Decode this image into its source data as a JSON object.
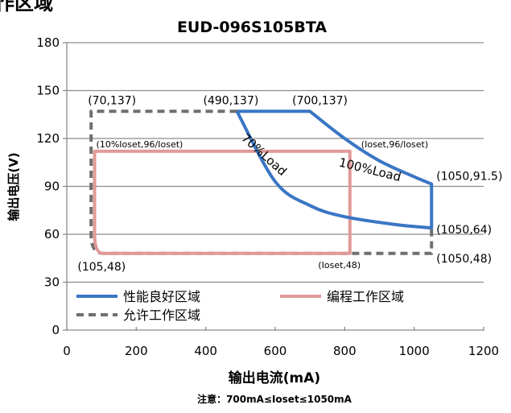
{
  "top_fragment": "作区域",
  "chart_data": {
    "type": "line",
    "title": "EUD-096S105BTA",
    "xlabel": "输出电流(mA)",
    "ylabel": "输出电压(V)",
    "footnote": "注意：700mA≤Ioset≤1050mA",
    "xlim": [
      0,
      1200
    ],
    "ylim": [
      0,
      180
    ],
    "x_ticks": [
      "0",
      "200",
      "400",
      "600",
      "800",
      "1000",
      "1200"
    ],
    "y_ticks": [
      "0",
      "30",
      "60",
      "90",
      "120",
      "150",
      "180"
    ],
    "grid": "horizontal",
    "legend_position": "bottom",
    "series": [
      {
        "name": "性能良好区域",
        "color": "#3a76c4",
        "style": "solid",
        "points": [
          [
            490,
            137
          ],
          [
            700,
            137
          ],
          [
            800,
            120
          ],
          [
            900,
            106
          ],
          [
            1000,
            96
          ],
          [
            1050,
            91.5
          ],
          [
            1050,
            64
          ],
          [
            950,
            66
          ],
          [
            800,
            71
          ],
          [
            700,
            78
          ],
          [
            600,
            93
          ],
          [
            490,
            137
          ]
        ]
      },
      {
        "name": "编程工作区域",
        "color": "#e09a98",
        "style": "solid",
        "points": [
          [
            815,
            48
          ],
          [
            815,
            112
          ],
          [
            80,
            112
          ],
          [
            80,
            60
          ],
          [
            105,
            48
          ],
          [
            815,
            48
          ]
        ]
      },
      {
        "name": "允许工作区域",
        "color": "#6f6f6f",
        "style": "dashed",
        "points": [
          [
            490,
            137
          ],
          [
            70,
            137
          ],
          [
            70,
            60
          ],
          [
            105,
            48
          ],
          [
            1050,
            48
          ],
          [
            1050,
            64
          ]
        ]
      }
    ],
    "annotations": [
      {
        "text": "(70,137)",
        "x": 70,
        "y": 137
      },
      {
        "text": "(490,137)",
        "x": 490,
        "y": 137
      },
      {
        "text": "(700,137)",
        "x": 700,
        "y": 137
      },
      {
        "text": "(10%Ioset,96/Ioset)",
        "x": 80,
        "y": 112
      },
      {
        "text": "(Ioset,96/Ioset)",
        "x": 815,
        "y": 112
      },
      {
        "text": "(1050,91.5)",
        "x": 1050,
        "y": 91.5
      },
      {
        "text": "(1050,64)",
        "x": 1050,
        "y": 64
      },
      {
        "text": "(1050,48)",
        "x": 1050,
        "y": 48
      },
      {
        "text": "(105,48)",
        "x": 105,
        "y": 48
      },
      {
        "text": "(Ioset,48)",
        "x": 815,
        "y": 48
      }
    ],
    "curve_labels": [
      {
        "text": "70%Load",
        "x": 560,
        "y": 108
      },
      {
        "text": "100%Load",
        "x": 870,
        "y": 98
      }
    ]
  }
}
